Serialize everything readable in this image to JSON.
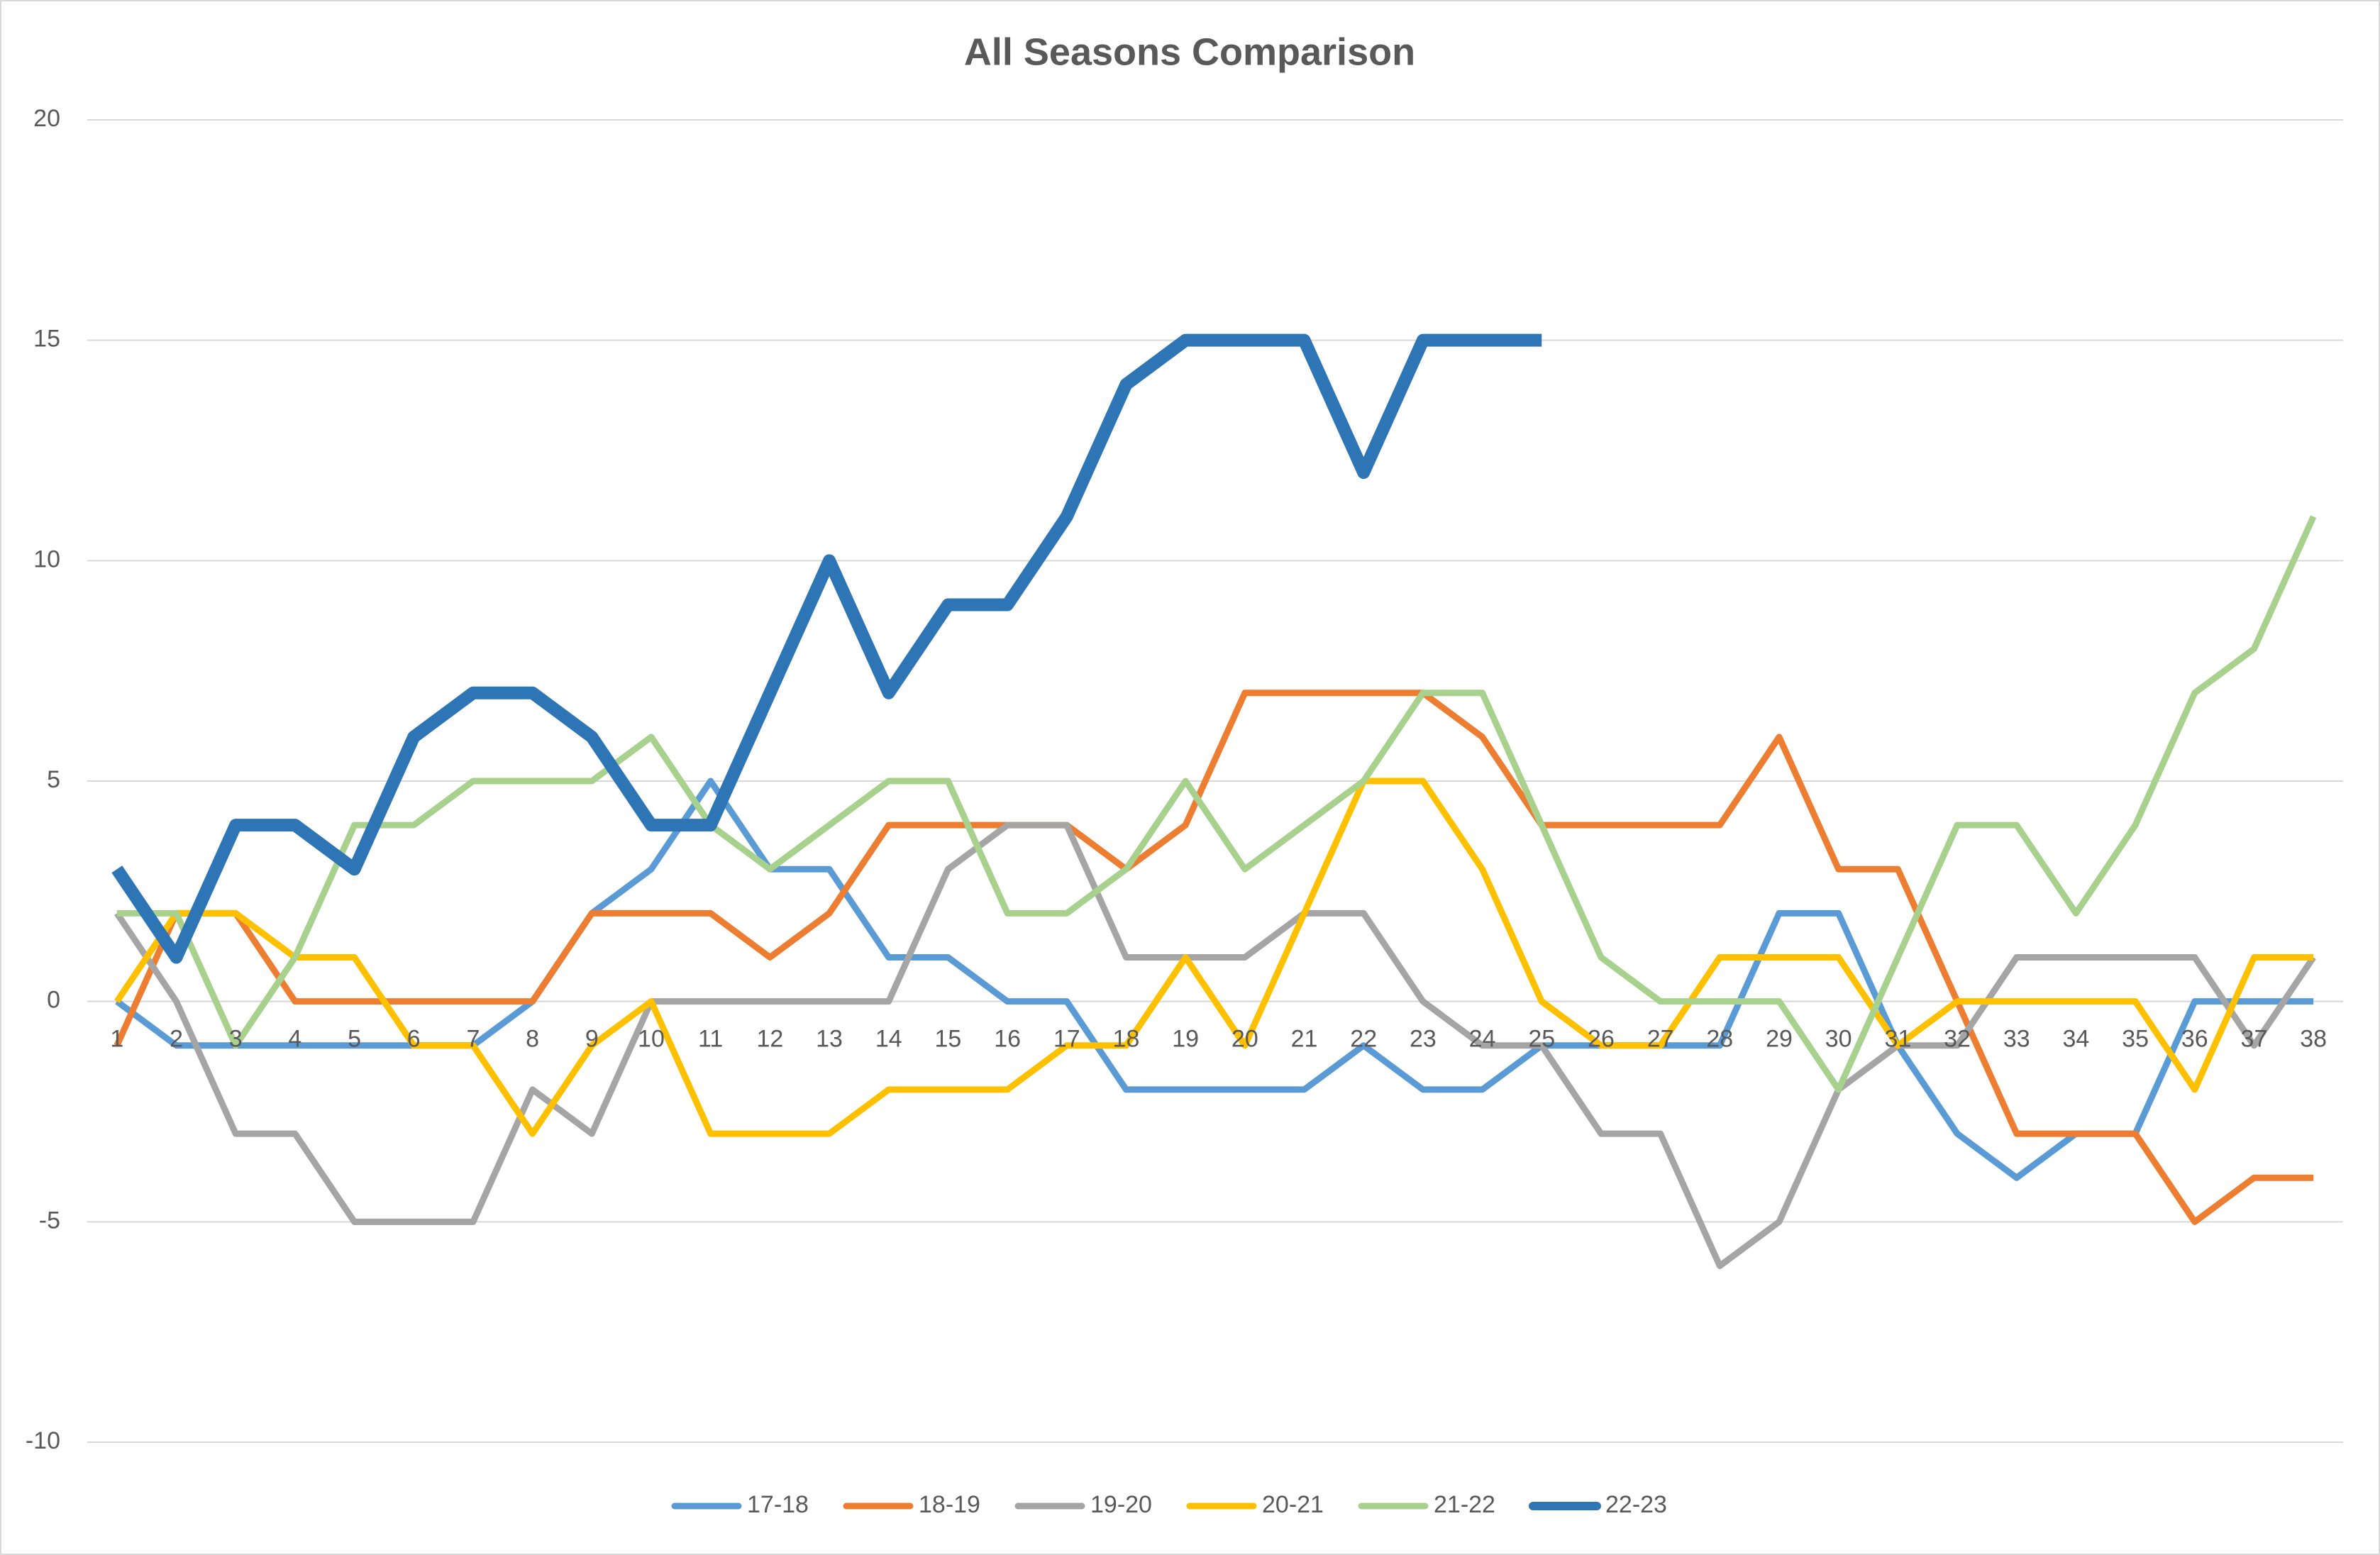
{
  "chart_data": {
    "type": "line",
    "title": "All Seasons Comparison",
    "categories": [
      "1",
      "2",
      "3",
      "4",
      "5",
      "6",
      "7",
      "8",
      "9",
      "10",
      "11",
      "12",
      "13",
      "14",
      "15",
      "16",
      "17",
      "18",
      "19",
      "20",
      "21",
      "22",
      "23",
      "24",
      "25",
      "26",
      "27",
      "28",
      "29",
      "30",
      "31",
      "32",
      "33",
      "34",
      "35",
      "36",
      "37",
      "38"
    ],
    "ylim": [
      -10,
      20
    ],
    "yticks": [
      -10,
      -5,
      0,
      5,
      10,
      15,
      20
    ],
    "grid": true,
    "legend": "bottom",
    "series": [
      {
        "name": "17-18",
        "color": "#5b9bd5",
        "width": 9,
        "values": [
          0,
          -1,
          -1,
          -1,
          -1,
          -1,
          -1,
          0,
          2,
          3,
          5,
          3,
          3,
          1,
          1,
          0,
          0,
          -2,
          -2,
          -2,
          -2,
          -1,
          -2,
          -2,
          -1,
          -1,
          -1,
          -1,
          2,
          2,
          -1,
          -3,
          -4,
          -3,
          -3,
          0,
          0,
          0
        ]
      },
      {
        "name": "18-19",
        "color": "#ed7d31",
        "width": 9,
        "values": [
          -1,
          2,
          2,
          0,
          0,
          0,
          0,
          0,
          2,
          2,
          2,
          1,
          2,
          4,
          4,
          4,
          4,
          3,
          4,
          7,
          7,
          7,
          7,
          6,
          4,
          4,
          4,
          4,
          6,
          3,
          3,
          0,
          -3,
          -3,
          -3,
          -5,
          -4,
          -4
        ]
      },
      {
        "name": "19-20",
        "color": "#a5a5a5",
        "width": 9,
        "values": [
          2,
          0,
          -3,
          -3,
          -5,
          -5,
          -5,
          -2,
          -3,
          0,
          0,
          0,
          0,
          0,
          3,
          4,
          4,
          1,
          1,
          1,
          2,
          2,
          0,
          -1,
          -1,
          -3,
          -3,
          -6,
          -5,
          -2,
          -1,
          -1,
          1,
          1,
          1,
          1,
          -1,
          1
        ]
      },
      {
        "name": "20-21",
        "color": "#ffc000",
        "width": 9,
        "values": [
          0,
          2,
          2,
          1,
          1,
          -1,
          -1,
          -3,
          -1,
          0,
          -3,
          -3,
          -3,
          -2,
          -2,
          -2,
          -1,
          -1,
          1,
          -1,
          2,
          5,
          5,
          3,
          0,
          -1,
          -1,
          1,
          1,
          1,
          -1,
          0,
          0,
          0,
          0,
          -2,
          1,
          1
        ]
      },
      {
        "name": "21-22",
        "color": "#a9d18e",
        "width": 9,
        "values": [
          2,
          2,
          -1,
          1,
          4,
          4,
          5,
          5,
          5,
          6,
          4,
          3,
          4,
          5,
          5,
          2,
          2,
          3,
          5,
          3,
          4,
          5,
          7,
          7,
          4,
          1,
          0,
          0,
          0,
          -2,
          1,
          4,
          4,
          2,
          4,
          7,
          8,
          11
        ]
      },
      {
        "name": "22-23",
        "color": "#2e75b6",
        "width": 18,
        "values": [
          3,
          1,
          4,
          4,
          3,
          6,
          7,
          7,
          6,
          4,
          4,
          7,
          10,
          7,
          9,
          9,
          11,
          14,
          15,
          15,
          15,
          12,
          15,
          15,
          15,
          null,
          null,
          null,
          null,
          null,
          null,
          null,
          null,
          null,
          null,
          null,
          null,
          null
        ]
      }
    ]
  }
}
